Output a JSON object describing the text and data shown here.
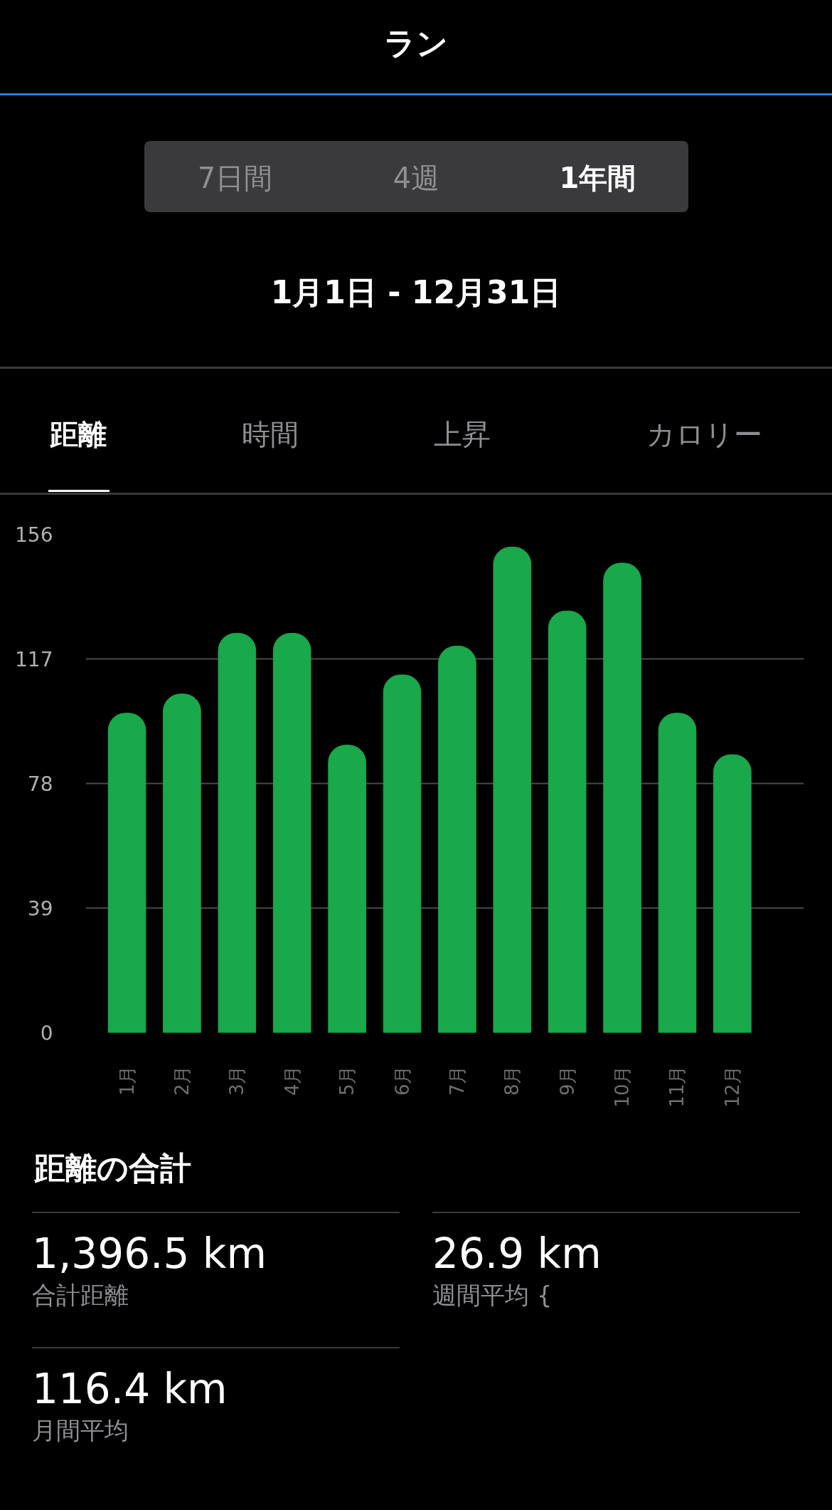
{
  "chart_data": {
    "type": "bar",
    "title": "ラン",
    "subtitle": "1月1日 - 12月31日",
    "categories": [
      "1月",
      "2月",
      "3月",
      "4月",
      "5月",
      "6月",
      "7月",
      "8月",
      "9月",
      "10月",
      "11月",
      "12月"
    ],
    "values": [
      100,
      106,
      125,
      125,
      90,
      112,
      121,
      152,
      132,
      147,
      100,
      87
    ],
    "color": "#19a84a",
    "ylim": [
      0,
      156
    ],
    "yticks": [
      0,
      39,
      78,
      117,
      156
    ],
    "grid": "y",
    "annotations": [
      "7日間",
      "4週",
      "1年間",
      "距離",
      "時間",
      "上昇",
      "カロリー",
      "距離の合計",
      "1,396.5 km",
      "合計距離",
      "26.9 km",
      "週間平均 {",
      "116.4 km",
      "月間平均"
    ]
  }
}
